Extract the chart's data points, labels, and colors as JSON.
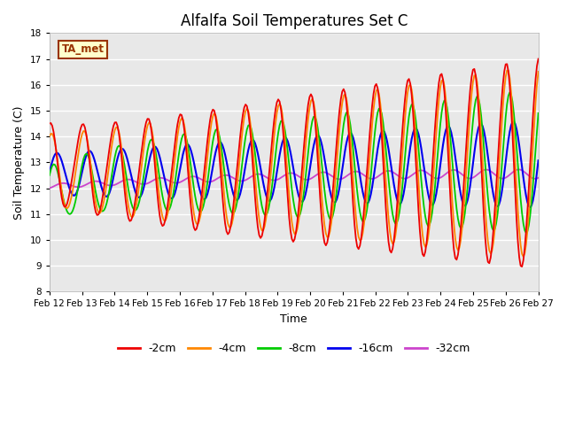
{
  "title": "Alfalfa Soil Temperatures Set C",
  "xlabel": "Time",
  "ylabel": "Soil Temperature (C)",
  "ylim": [
    8.0,
    18.0
  ],
  "yticks": [
    8.0,
    9.0,
    10.0,
    11.0,
    12.0,
    13.0,
    14.0,
    15.0,
    16.0,
    17.0,
    18.0
  ],
  "fig_bg": "#ffffff",
  "axes_bg": "#e8e8e8",
  "annotation_text": "TA_met",
  "annotation_bg": "#ffffcc",
  "annotation_border": "#993300",
  "annotation_text_color": "#993300",
  "legend_entries": [
    "-2cm",
    "-4cm",
    "-8cm",
    "-16cm",
    "-32cm"
  ],
  "colors": {
    "-2cm": "#ee0000",
    "-4cm": "#ff8800",
    "-8cm": "#00cc00",
    "-16cm": "#0000ee",
    "-32cm": "#cc44cc"
  },
  "x_labels": [
    "Feb 12",
    "Feb 13",
    "Feb 14",
    "Feb 15",
    "Feb 16",
    "Feb 17",
    "Feb 18",
    "Feb 19",
    "Feb 20",
    "Feb 21",
    "Feb 22",
    "Feb 23",
    "Feb 24",
    "Feb 25",
    "Feb 26",
    "Feb 27"
  ],
  "figsize": [
    6.4,
    4.8
  ],
  "dpi": 100
}
